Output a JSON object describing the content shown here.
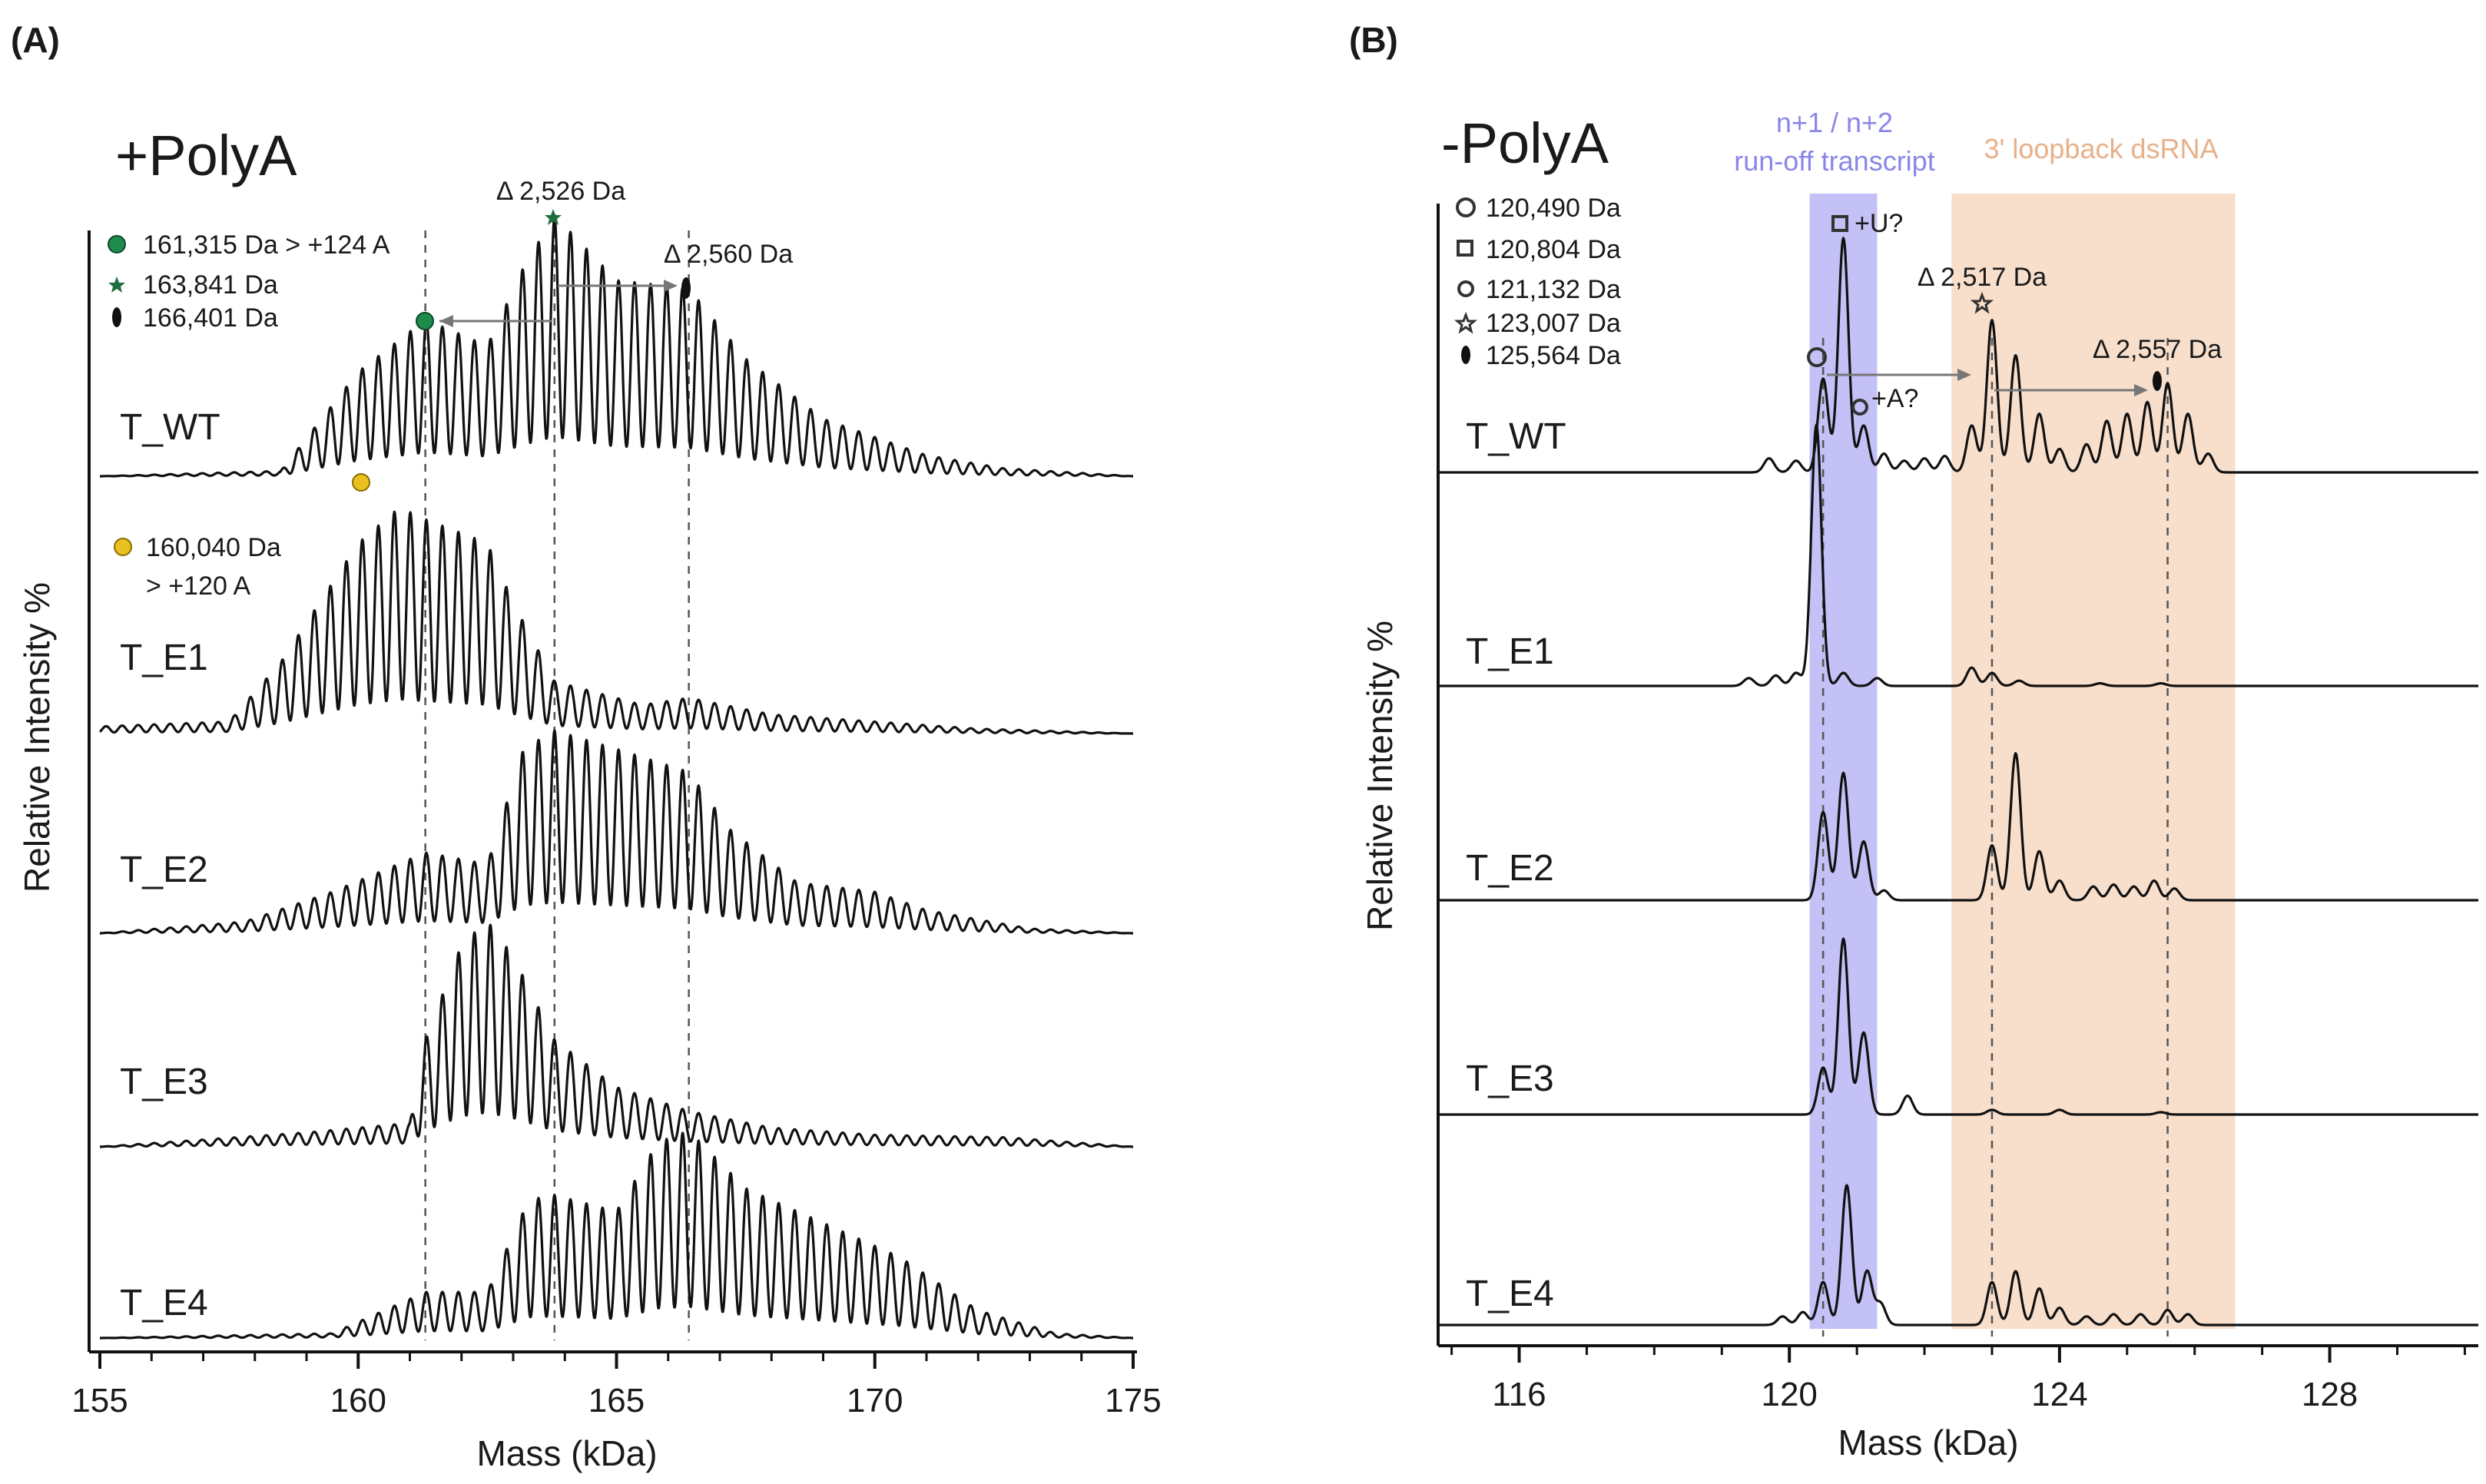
{
  "chart_data": [
    {
      "type": "line",
      "panel_label": "(A)",
      "title": "+PolyA",
      "xlabel": "Mass (kDa)",
      "ylabel": "Relative Intensity %",
      "xlim": [
        155,
        175
      ],
      "xticks": [
        "155",
        "160",
        "165",
        "170",
        "175"
      ],
      "xtick_values": [
        155,
        160,
        165,
        170,
        175
      ],
      "legend": [
        {
          "marker": "filled-circle",
          "color": "#1e8a4c",
          "label": "161,315 Da > +124 A"
        },
        {
          "marker": "star",
          "color": "#1e6e40",
          "label": "163,841 Da"
        },
        {
          "marker": "filled-oval",
          "color": "#111111",
          "label": "166,401 Da"
        }
      ],
      "extra_legend": {
        "marker": "filled-circle",
        "color": "#e8c020",
        "line1": "160,040 Da",
        "line2": "> +120 A"
      },
      "annotations": [
        {
          "text": "Δ 2,526 Da",
          "x": 163.8
        },
        {
          "text": "Δ 2,560 Da",
          "x": 166.4
        }
      ],
      "ref_lines": [
        161.3,
        163.8,
        166.4
      ],
      "periodicity_kDa": 0.31,
      "series": [
        {
          "name": "T_WT",
          "envelope": [
            [
              155,
              0
            ],
            [
              158.5,
              0.02
            ],
            [
              160,
              0.4
            ],
            [
              161.3,
              0.6
            ],
            [
              162.5,
              0.5
            ],
            [
              163.2,
              0.8
            ],
            [
              163.8,
              1.0
            ],
            [
              165,
              0.75
            ],
            [
              166.4,
              0.72
            ],
            [
              167.5,
              0.45
            ],
            [
              169,
              0.22
            ],
            [
              171,
              0.08
            ],
            [
              172.5,
              0.03
            ],
            [
              175,
              0
            ]
          ]
        },
        {
          "name": "T_E1",
          "envelope": [
            [
              155,
              0.03
            ],
            [
              157.5,
              0.05
            ],
            [
              158.5,
              0.3
            ],
            [
              160,
              0.8
            ],
            [
              160.8,
              0.95
            ],
            [
              161.3,
              0.9
            ],
            [
              162.5,
              0.8
            ],
            [
              163,
              0.55
            ],
            [
              163.8,
              0.22
            ],
            [
              165.5,
              0.12
            ],
            [
              166.4,
              0.15
            ],
            [
              168,
              0.08
            ],
            [
              170,
              0.05
            ],
            [
              172,
              0.02
            ],
            [
              175,
              0
            ]
          ]
        },
        {
          "name": "T_E2",
          "envelope": [
            [
              155,
              0
            ],
            [
              157.8,
              0.05
            ],
            [
              159.5,
              0.18
            ],
            [
              161.3,
              0.35
            ],
            [
              162.5,
              0.3
            ],
            [
              163.2,
              0.8
            ],
            [
              163.8,
              0.88
            ],
            [
              165,
              0.8
            ],
            [
              166.4,
              0.7
            ],
            [
              167.2,
              0.45
            ],
            [
              168.5,
              0.22
            ],
            [
              170,
              0.18
            ],
            [
              171,
              0.1
            ],
            [
              173,
              0.02
            ],
            [
              175,
              0
            ]
          ]
        },
        {
          "name": "T_E3",
          "envelope": [
            [
              155,
              0
            ],
            [
              157,
              0.03
            ],
            [
              159,
              0.06
            ],
            [
              161,
              0.1
            ],
            [
              161.3,
              0.45
            ],
            [
              162,
              0.85
            ],
            [
              162.5,
              0.95
            ],
            [
              163,
              0.8
            ],
            [
              163.8,
              0.45
            ],
            [
              165,
              0.25
            ],
            [
              166.4,
              0.15
            ],
            [
              168,
              0.08
            ],
            [
              170,
              0.05
            ],
            [
              172.5,
              0.04
            ],
            [
              175,
              0
            ]
          ]
        },
        {
          "name": "T_E4",
          "envelope": [
            [
              155,
              0
            ],
            [
              159.5,
              0.02
            ],
            [
              160.5,
              0.12
            ],
            [
              161.3,
              0.2
            ],
            [
              162.5,
              0.2
            ],
            [
              163.3,
              0.6
            ],
            [
              163.8,
              0.62
            ],
            [
              165,
              0.55
            ],
            [
              165.8,
              0.85
            ],
            [
              166.4,
              0.9
            ],
            [
              167.5,
              0.65
            ],
            [
              169,
              0.5
            ],
            [
              170.5,
              0.35
            ],
            [
              172,
              0.12
            ],
            [
              173.5,
              0.02
            ],
            [
              175,
              0
            ]
          ]
        }
      ]
    },
    {
      "type": "line",
      "panel_label": "(B)",
      "title": "-PolyA",
      "xlabel": "Mass (kDa)",
      "ylabel": "Relative Intensity %",
      "xlim": [
        114.8,
        130.2
      ],
      "xticks": [
        "116",
        "120",
        "124",
        "128"
      ],
      "xtick_values": [
        116,
        120,
        124,
        128
      ],
      "minor_tick_step": 1,
      "legend": [
        {
          "marker": "open-circle",
          "label": "120,490 Da"
        },
        {
          "marker": "open-square",
          "label": "120,804 Da"
        },
        {
          "marker": "open-circle-small",
          "label": "121,132 Da"
        },
        {
          "marker": "open-star",
          "label": "123,007 Da"
        },
        {
          "marker": "filled-oval",
          "label": "125,564 Da"
        }
      ],
      "regions": [
        {
          "label1": "n+1 / n+2",
          "label2": "run-off transcript",
          "x": [
            120.3,
            121.3
          ],
          "color": "#b9b6f5"
        },
        {
          "label1": "3' loopback dsRNA",
          "x": [
            122.4,
            126.6
          ],
          "color": "#f7dcc7"
        }
      ],
      "annotations": [
        {
          "text": "+U?"
        },
        {
          "text": "+A?"
        },
        {
          "text": "Δ 2,517 Da",
          "x": 123.0
        },
        {
          "text": "Δ 2,557 Da",
          "x": 125.6
        }
      ],
      "ref_lines": [
        120.5,
        123.0,
        125.6
      ],
      "series": [
        {
          "name": "T_WT",
          "peaks": [
            [
              119.7,
              0.06
            ],
            [
              120.1,
              0.05
            ],
            [
              120.5,
              0.4
            ],
            [
              120.8,
              1.0
            ],
            [
              121.1,
              0.2
            ],
            [
              121.4,
              0.08
            ],
            [
              121.7,
              0.05
            ],
            [
              122.0,
              0.06
            ],
            [
              122.3,
              0.07
            ],
            [
              122.7,
              0.2
            ],
            [
              123.0,
              0.65
            ],
            [
              123.35,
              0.5
            ],
            [
              123.7,
              0.25
            ],
            [
              124.0,
              0.1
            ],
            [
              124.4,
              0.12
            ],
            [
              124.7,
              0.22
            ],
            [
              125.0,
              0.25
            ],
            [
              125.3,
              0.3
            ],
            [
              125.6,
              0.38
            ],
            [
              125.9,
              0.25
            ],
            [
              126.2,
              0.08
            ]
          ]
        },
        {
          "name": "T_E1",
          "peaks": [
            [
              119.4,
              0.03
            ],
            [
              119.8,
              0.04
            ],
            [
              120.1,
              0.05
            ],
            [
              120.4,
              1.0
            ],
            [
              120.8,
              0.05
            ],
            [
              121.3,
              0.03
            ],
            [
              122.7,
              0.07
            ],
            [
              123.0,
              0.05
            ],
            [
              123.4,
              0.02
            ],
            [
              124.6,
              0.01
            ],
            [
              125.5,
              0.01
            ]
          ]
        },
        {
          "name": "T_E2",
          "peaks": [
            [
              120.5,
              0.45
            ],
            [
              120.8,
              0.65
            ],
            [
              121.1,
              0.3
            ],
            [
              121.4,
              0.05
            ],
            [
              123.0,
              0.28
            ],
            [
              123.35,
              0.75
            ],
            [
              123.7,
              0.25
            ],
            [
              124.0,
              0.1
            ],
            [
              124.5,
              0.07
            ],
            [
              124.8,
              0.08
            ],
            [
              125.1,
              0.07
            ],
            [
              125.4,
              0.1
            ],
            [
              125.7,
              0.06
            ]
          ]
        },
        {
          "name": "T_E3",
          "peaks": [
            [
              120.5,
              0.2
            ],
            [
              120.8,
              0.75
            ],
            [
              121.1,
              0.35
            ],
            [
              121.75,
              0.08
            ],
            [
              123.0,
              0.02
            ],
            [
              124.0,
              0.02
            ],
            [
              125.5,
              0.01
            ]
          ]
        },
        {
          "name": "T_E4",
          "peaks": [
            [
              119.9,
              0.04
            ],
            [
              120.2,
              0.06
            ],
            [
              120.5,
              0.2
            ],
            [
              120.85,
              0.65
            ],
            [
              121.15,
              0.25
            ],
            [
              121.35,
              0.1
            ],
            [
              123.0,
              0.2
            ],
            [
              123.35,
              0.25
            ],
            [
              123.7,
              0.17
            ],
            [
              124.0,
              0.08
            ],
            [
              124.4,
              0.04
            ],
            [
              124.8,
              0.05
            ],
            [
              125.2,
              0.05
            ],
            [
              125.6,
              0.07
            ],
            [
              125.9,
              0.05
            ]
          ]
        }
      ]
    }
  ]
}
